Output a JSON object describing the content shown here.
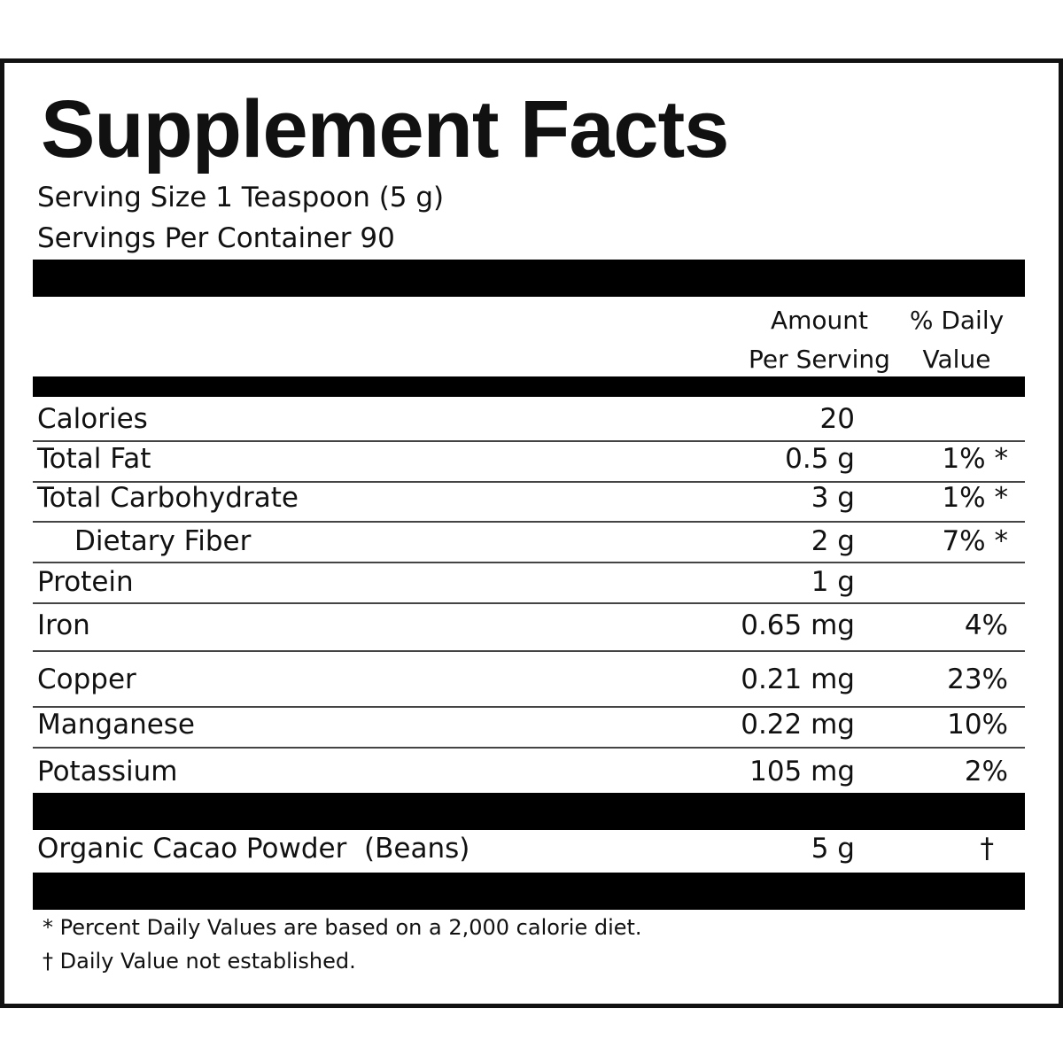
{
  "title": "Supplement Facts",
  "serving_size": "Serving Size 1 Teaspoon (5 g)",
  "servings_per_container": "Servings Per Container 90",
  "columns": {
    "amount": "Amount Per Serving",
    "daily_value": "% Daily Value"
  },
  "rows": [
    {
      "name": "Calories",
      "amount": "20"
    },
    {
      "name": "Total Fat",
      "amount": "0.5 g",
      "daily_value": "1% *"
    },
    {
      "name": "Total Carbohydrate",
      "amount": "3 g",
      "daily_value": "1% *"
    },
    {
      "name": "Dietary Fiber",
      "amount": "2 g",
      "daily_value": "7% *"
    },
    {
      "name": "Protein",
      "amount": "1 g"
    },
    {
      "name": "Iron",
      "amount": "0.65 mg",
      "daily_value": "4%"
    },
    {
      "name": "Copper",
      "amount": "0.21 mg",
      "daily_value": "23%"
    },
    {
      "name": "Manganese",
      "amount": "0.22 mg",
      "daily_value": "10%"
    },
    {
      "name": "Potassium",
      "amount": "105 mg",
      "daily_value": "2%"
    }
  ],
  "ingredient": {
    "name": "Organic Cacao Powder  (Beans)",
    "amount": "5 g",
    "daily_value": "†"
  },
  "footnotes": [
    "* Percent Daily Values are based on a 2,000 calorie diet.",
    "† Daily Value not established."
  ]
}
